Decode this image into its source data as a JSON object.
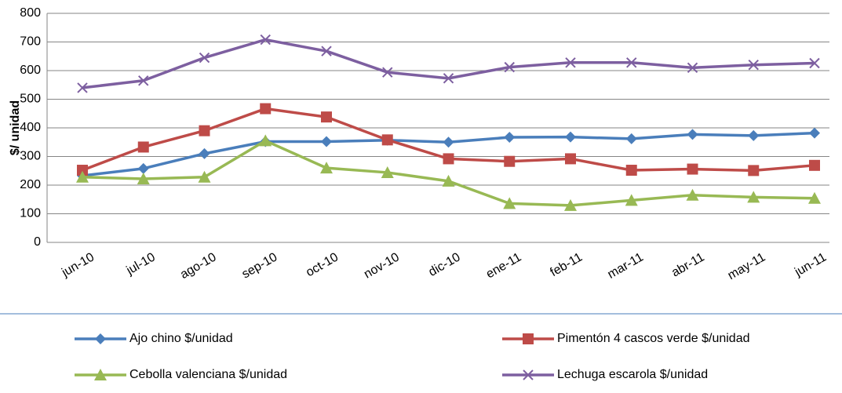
{
  "chart_data": {
    "type": "line",
    "y_label": "$/ unidad",
    "categories": [
      "jun-10",
      "jul-10",
      "ago-10",
      "sep-10",
      "oct-10",
      "nov-10",
      "dic-10",
      "ene-11",
      "feb-11",
      "mar-11",
      "abr-11",
      "may-11",
      "jun-11"
    ],
    "series": [
      {
        "name": "Ajo chino  $/unidad",
        "color": "#4a7ebb",
        "marker": "diamond",
        "values": [
          233,
          258,
          310,
          352,
          352,
          357,
          350,
          367,
          368,
          362,
          377,
          373,
          382
        ]
      },
      {
        "name": "Pimentón 4 cascos verde  $/unidad",
        "color": "#be4b48",
        "marker": "square",
        "values": [
          252,
          333,
          390,
          467,
          438,
          358,
          292,
          283,
          292,
          252,
          256,
          251,
          269
        ]
      },
      {
        "name": "Cebolla valenciana  $/unidad",
        "color": "#98b954",
        "marker": "triangle",
        "values": [
          228,
          222,
          228,
          355,
          260,
          244,
          214,
          136,
          129,
          147,
          165,
          158,
          154
        ]
      },
      {
        "name": "Lechuga escarola  $/unidad",
        "color": "#7d5fa0",
        "marker": "x",
        "values": [
          540,
          565,
          645,
          708,
          668,
          594,
          573,
          612,
          628,
          628,
          610,
          620,
          626
        ]
      }
    ],
    "ylim": [
      0,
      800
    ],
    "yticks": [
      0,
      100,
      200,
      300,
      400,
      500,
      600,
      700,
      800
    ],
    "grid": true,
    "legend": "bottom"
  }
}
